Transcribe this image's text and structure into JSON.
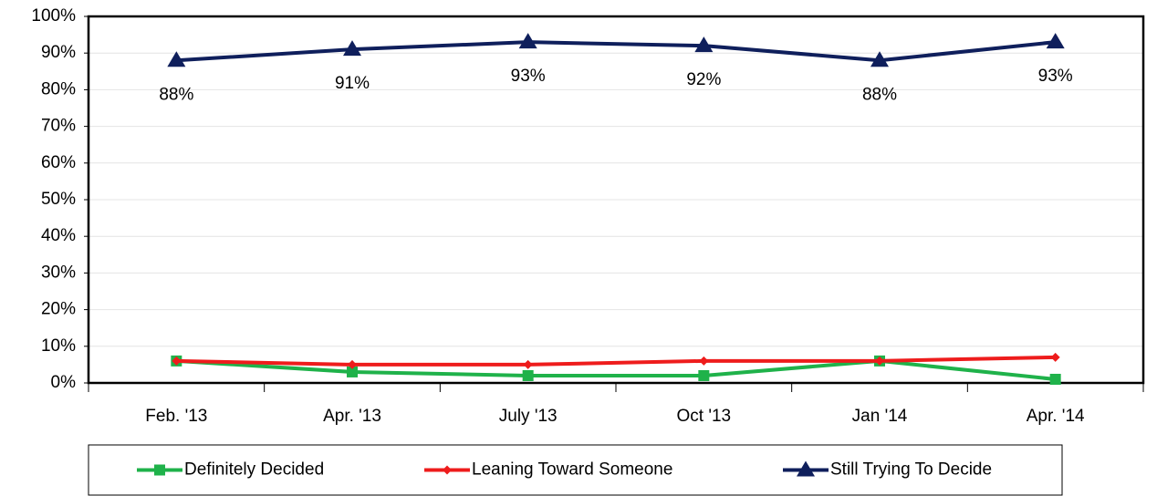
{
  "chart_data": {
    "type": "line",
    "categories": [
      "Feb. '13",
      "Apr. '13",
      "July '13",
      "Oct '13",
      "Jan '14",
      "Apr. '14"
    ],
    "series": [
      {
        "name": "Definitely Decided",
        "color": "#1fb24a",
        "marker": "square",
        "values": [
          6,
          3,
          2,
          2,
          6,
          1
        ]
      },
      {
        "name": "Leaning Toward Someone",
        "color": "#ee1c1c",
        "marker": "diamond",
        "values": [
          6,
          5,
          5,
          6,
          6,
          7
        ]
      },
      {
        "name": "Still Trying To Decide",
        "color": "#0f1f5c",
        "marker": "triangle",
        "values": [
          88,
          91,
          93,
          92,
          88,
          93
        ],
        "value_labels": [
          "88%",
          "91%",
          "93%",
          "92%",
          "88%",
          "93%"
        ]
      }
    ],
    "ylim": [
      0,
      100
    ],
    "yticks": [
      {
        "value": 0,
        "label": "0%"
      },
      {
        "value": 10,
        "label": "10%"
      },
      {
        "value": 20,
        "label": "20%"
      },
      {
        "value": 30,
        "label": "30%"
      },
      {
        "value": 40,
        "label": "40%"
      },
      {
        "value": 50,
        "label": "50%"
      },
      {
        "value": 60,
        "label": "60%"
      },
      {
        "value": 70,
        "label": "70%"
      },
      {
        "value": 80,
        "label": "80%"
      },
      {
        "value": 90,
        "label": "90%"
      },
      {
        "value": 100,
        "label": "100%"
      }
    ],
    "grid": true,
    "legend": "bottom"
  }
}
